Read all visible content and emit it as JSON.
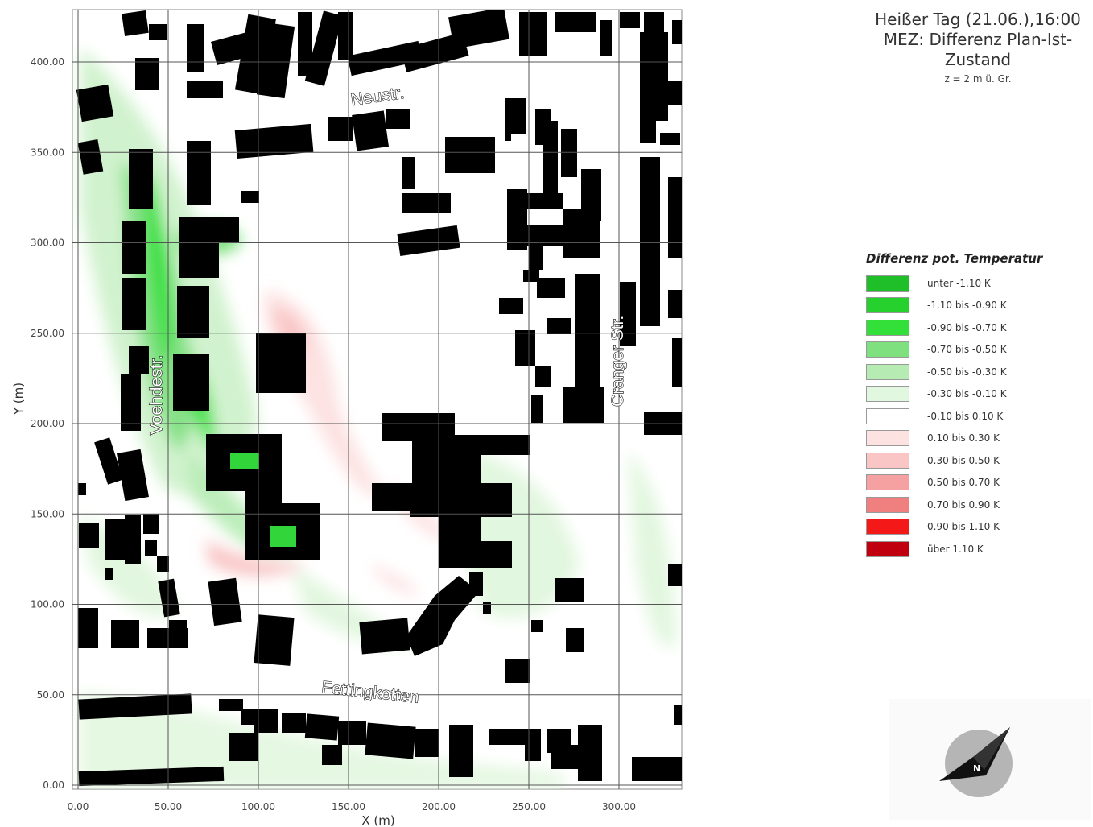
{
  "title": {
    "lines": [
      "Heißer Tag (21.06.),16:00",
      "MEZ: Differenz Plan-Ist-",
      "Zustand"
    ],
    "subtitle": "z = 2 m ü. Gr."
  },
  "axes": {
    "xlabel": "X (m)",
    "ylabel": "Y (m)",
    "x_ticks": [
      "0.00",
      "50.00",
      "100.00",
      "150.00",
      "200.00",
      "250.00",
      "300.00"
    ],
    "y_ticks": [
      "0.00",
      "50.00",
      "100.00",
      "150.00",
      "200.00",
      "250.00",
      "300.00",
      "350.00",
      "400.00"
    ],
    "x_range": [
      0,
      335
    ],
    "y_range": [
      0,
      428
    ]
  },
  "streets": {
    "neustr": "Neustr.",
    "voehdestr": "Voehdestr.",
    "cranger": "Cranger Str.",
    "fettingkotten": "Fettingkotten"
  },
  "legend": {
    "title": "Differenz pot. Temperatur",
    "items": [
      {
        "label": "unter -1.10 K",
        "color": "#1fbf2a"
      },
      {
        "label": "-1.10 bis -0.90 K",
        "color": "#26d12e"
      },
      {
        "label": "-0.90 bis -0.70 K",
        "color": "#33e03a"
      },
      {
        "label": "-0.70 bis -0.50 K",
        "color": "#7ee07f"
      },
      {
        "label": "-0.50 bis -0.30 K",
        "color": "#b6ecb4"
      },
      {
        "label": "-0.30 bis -0.10 K",
        "color": "#e2f7df"
      },
      {
        "label": "-0.10 bis 0.10 K",
        "color": "#ffffff"
      },
      {
        "label": "0.10 bis 0.30 K",
        "color": "#fde2e2"
      },
      {
        "label": "0.30 bis 0.50 K",
        "color": "#f9c5c5"
      },
      {
        "label": "0.50 bis 0.70 K",
        "color": "#f5a1a1"
      },
      {
        "label": "0.70 bis 0.90 K",
        "color": "#f07f7f"
      },
      {
        "label": "0.90 bis 1.10 K",
        "color": "#f51818"
      },
      {
        "label": "über 1.10 K",
        "color": "#c0000e"
      }
    ]
  },
  "compass": {
    "label": "N"
  }
}
